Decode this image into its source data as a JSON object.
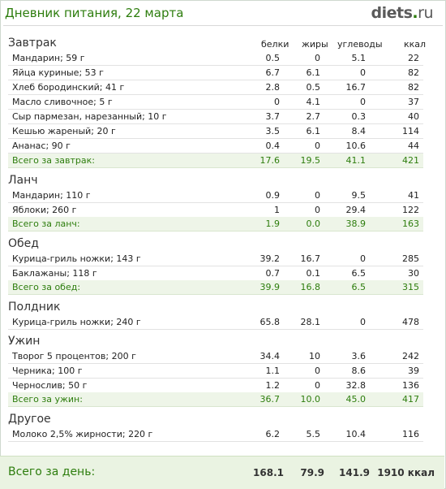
{
  "header": {
    "title": "Дневник питания, 22 марта",
    "logo_main": "diets",
    "logo_dot": ".",
    "logo_tld": "ru"
  },
  "columns": [
    "белки",
    "жиры",
    "углеводы",
    "ккал"
  ],
  "meals": [
    {
      "title": "Завтрак",
      "items": [
        {
          "name": "Мандарин; 59 г",
          "protein": "0.5",
          "fat": "0",
          "carbs": "5.1",
          "kcal": "22"
        },
        {
          "name": "Яйца куриные; 53 г",
          "protein": "6.7",
          "fat": "6.1",
          "carbs": "0",
          "kcal": "82"
        },
        {
          "name": "Хлеб бородинский; 41 г",
          "protein": "2.8",
          "fat": "0.5",
          "carbs": "16.7",
          "kcal": "82"
        },
        {
          "name": "Масло сливочное; 5 г",
          "protein": "0",
          "fat": "4.1",
          "carbs": "0",
          "kcal": "37"
        },
        {
          "name": "Сыр пармезан, нарезанный; 10 г",
          "protein": "3.7",
          "fat": "2.7",
          "carbs": "0.3",
          "kcal": "40"
        },
        {
          "name": "Кешью жареный; 20 г",
          "protein": "3.5",
          "fat": "6.1",
          "carbs": "8.4",
          "kcal": "114"
        },
        {
          "name": "Ананас; 90 г",
          "protein": "0.4",
          "fat": "0",
          "carbs": "10.6",
          "kcal": "44"
        }
      ],
      "total": {
        "label": "Всего за завтрак:",
        "protein": "17.6",
        "fat": "19.5",
        "carbs": "41.1",
        "kcal": "421"
      }
    },
    {
      "title": "Ланч",
      "items": [
        {
          "name": "Мандарин; 110 г",
          "protein": "0.9",
          "fat": "0",
          "carbs": "9.5",
          "kcal": "41"
        },
        {
          "name": "Яблоки; 260 г",
          "protein": "1",
          "fat": "0",
          "carbs": "29.4",
          "kcal": "122"
        }
      ],
      "total": {
        "label": "Всего за ланч:",
        "protein": "1.9",
        "fat": "0.0",
        "carbs": "38.9",
        "kcal": "163"
      }
    },
    {
      "title": "Обед",
      "items": [
        {
          "name": "Курица-гриль ножки; 143 г",
          "protein": "39.2",
          "fat": "16.7",
          "carbs": "0",
          "kcal": "285"
        },
        {
          "name": "Баклажаны; 118 г",
          "protein": "0.7",
          "fat": "0.1",
          "carbs": "6.5",
          "kcal": "30"
        }
      ],
      "total": {
        "label": "Всего за обед:",
        "protein": "39.9",
        "fat": "16.8",
        "carbs": "6.5",
        "kcal": "315"
      }
    },
    {
      "title": "Полдник",
      "items": [
        {
          "name": "Курица-гриль ножки; 240 г",
          "protein": "65.8",
          "fat": "28.1",
          "carbs": "0",
          "kcal": "478"
        }
      ]
    },
    {
      "title": "Ужин",
      "items": [
        {
          "name": "Творог 5 процентов; 200 г",
          "protein": "34.4",
          "fat": "10",
          "carbs": "3.6",
          "kcal": "242"
        },
        {
          "name": "Черника; 100 г",
          "protein": "1.1",
          "fat": "0",
          "carbs": "8.6",
          "kcal": "39"
        },
        {
          "name": "Чернослив; 50 г",
          "protein": "1.2",
          "fat": "0",
          "carbs": "32.8",
          "kcal": "136"
        }
      ],
      "total": {
        "label": "Всего за ужин:",
        "protein": "36.7",
        "fat": "10.0",
        "carbs": "45.0",
        "kcal": "417"
      }
    },
    {
      "title": "Другое",
      "items": [
        {
          "name": "Молоко 2,5% жирности; 220 г",
          "protein": "6.2",
          "fat": "5.5",
          "carbs": "10.4",
          "kcal": "116"
        }
      ]
    }
  ],
  "day_total": {
    "label": "Всего за день:",
    "protein": "168.1",
    "fat": "79.9",
    "carbs": "141.9",
    "kcal": "1910 ккал"
  },
  "colors": {
    "accent": "#2d7d0d",
    "total_bg": "#eef5e8",
    "day_bg": "#eaf3e2"
  }
}
